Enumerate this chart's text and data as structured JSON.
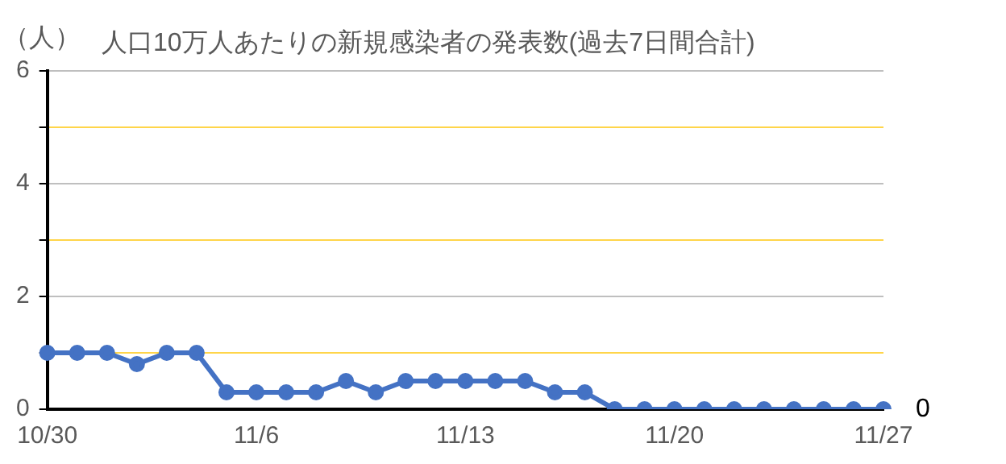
{
  "chart_data": {
    "type": "line",
    "title": "人口10万人あたりの新規感染者の発表数(過去7日間合計)",
    "ylabel": "（人）",
    "categories": [
      "10/30",
      null,
      null,
      null,
      null,
      null,
      null,
      "11/6",
      null,
      null,
      null,
      null,
      null,
      null,
      "11/13",
      null,
      null,
      null,
      null,
      null,
      null,
      "11/20",
      null,
      null,
      null,
      null,
      null,
      null,
      "11/27"
    ],
    "series": [
      {
        "color": "#4472c4",
        "values": [
          1,
          1,
          1,
          0.8,
          1,
          1,
          0.3,
          0.3,
          0.3,
          0.3,
          0.5,
          0.3,
          0.5,
          0.5,
          0.5,
          0.5,
          0.5,
          0.3,
          0.3,
          0,
          0,
          0,
          0,
          0,
          0,
          0,
          0,
          0,
          0
        ]
      }
    ],
    "ylim": [
      0,
      6
    ],
    "yticks": [
      0,
      {
        "value": 1,
        "label": null
      },
      2,
      {
        "value": 3,
        "label": null
      },
      4,
      {
        "value": 5,
        "label": null
      },
      6
    ],
    "grid": "y",
    "legend": false,
    "marker": "circle",
    "line_style": "solid",
    "annotations": [
      {
        "text": "0",
        "x": "11/27",
        "y": 0
      }
    ]
  }
}
